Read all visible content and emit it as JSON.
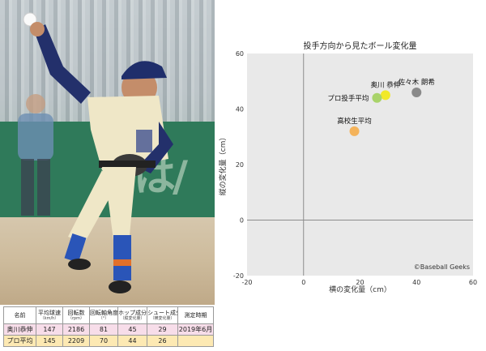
{
  "table": {
    "headers": [
      {
        "label": "名前",
        "sub": ""
      },
      {
        "label": "平均球速",
        "sub": "（km/h）"
      },
      {
        "label": "回転数",
        "sub": "（rpm）"
      },
      {
        "label": "回転軸角度",
        "sub": "（°）"
      },
      {
        "label": "ホップ成分",
        "sub": "（縦変化量）"
      },
      {
        "label": "シュート成分",
        "sub": "（横変化量）"
      },
      {
        "label": "測定時期",
        "sub": ""
      }
    ],
    "rows": [
      [
        "奥川恭伸",
        "147",
        "2186",
        "81",
        "45",
        "29",
        "2019年6月"
      ],
      [
        "プロ平均",
        "145",
        "2209",
        "70",
        "44",
        "26",
        ""
      ]
    ]
  },
  "chart_data": {
    "type": "scatter",
    "title": "投手方向から見たボール変化量",
    "xlabel": "横の変化量（cm）",
    "ylabel": "縦の変化量（cm）",
    "xlim": [
      -20,
      60
    ],
    "ylim": [
      -20,
      60
    ],
    "xticks": [
      -20,
      0,
      20,
      40,
      60
    ],
    "yticks": [
      -20,
      0,
      20,
      40,
      60
    ],
    "grid": false,
    "background": "#e9e9e9",
    "watermark": "©Baseball Geeks",
    "points": [
      {
        "label": "奥川 恭伸",
        "x": 29,
        "y": 45,
        "color": "#f1e92a",
        "label_pos": "top"
      },
      {
        "label": "プロ投手平均",
        "x": 26,
        "y": 44,
        "color": "#a9d36a",
        "label_pos": "left"
      },
      {
        "label": "佐々木 朗希",
        "x": 40,
        "y": 46,
        "color": "#8a8a8a",
        "label_pos": "top"
      },
      {
        "label": "高校生平均",
        "x": 18,
        "y": 32,
        "color": "#f4b35b",
        "label_pos": "top"
      }
    ]
  },
  "photo": {
    "wall_text": "は/ん"
  }
}
